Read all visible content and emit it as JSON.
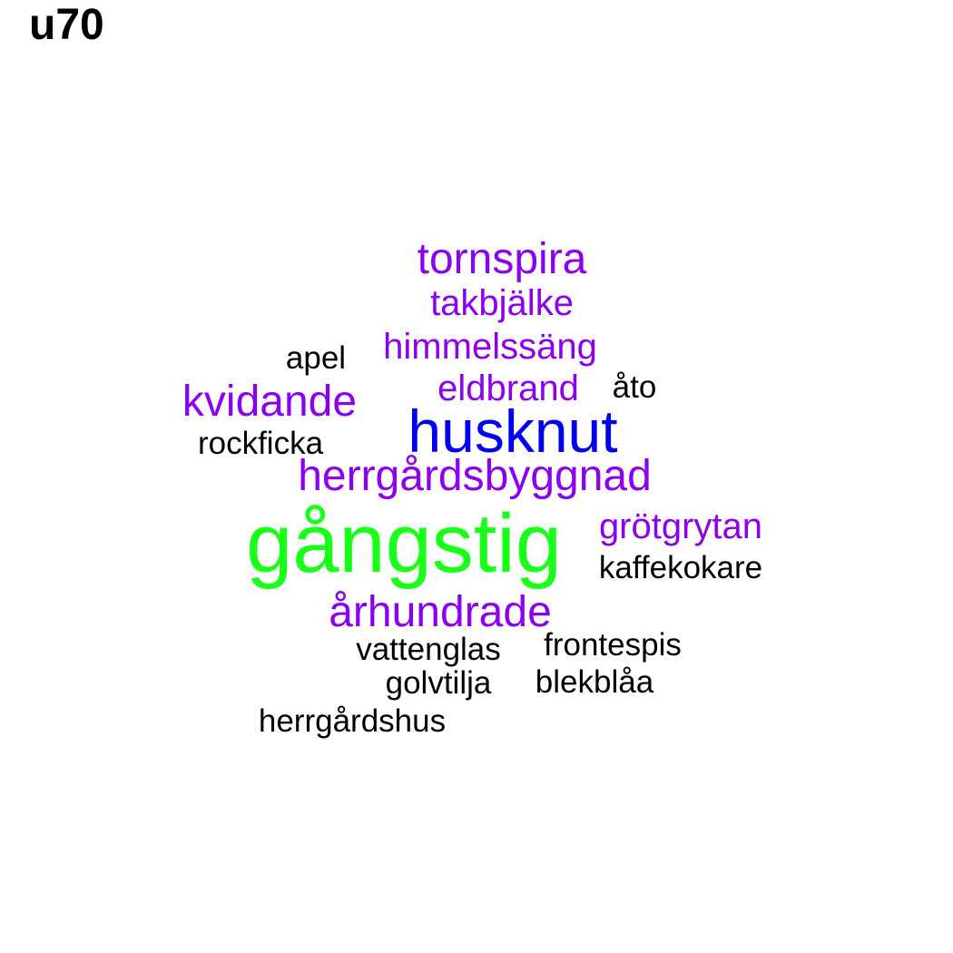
{
  "title": "u70",
  "colors": {
    "top": "#1aff1a",
    "second": "#0000ee",
    "mid": "#8b00ee",
    "low": "#000000"
  },
  "chart_data": {
    "type": "wordcloud",
    "words": [
      {
        "text": "gångstig",
        "weight": 10,
        "color": "top"
      },
      {
        "text": "husknut",
        "weight": 7,
        "color": "second"
      },
      {
        "text": "århundrade",
        "weight": 5,
        "color": "mid"
      },
      {
        "text": "tornspira",
        "weight": 5,
        "color": "mid"
      },
      {
        "text": "herrgårdsbyggnad",
        "weight": 5,
        "color": "mid"
      },
      {
        "text": "kvidande",
        "weight": 5,
        "color": "mid"
      },
      {
        "text": "takbjälke",
        "weight": 4,
        "color": "mid"
      },
      {
        "text": "himmelssäng",
        "weight": 4,
        "color": "mid"
      },
      {
        "text": "eldbrand",
        "weight": 4,
        "color": "mid"
      },
      {
        "text": "grötgrytan",
        "weight": 4,
        "color": "mid"
      },
      {
        "text": "kaffekokare",
        "weight": 3,
        "color": "low"
      },
      {
        "text": "frontespis",
        "weight": 3,
        "color": "low"
      },
      {
        "text": "vattenglas",
        "weight": 3,
        "color": "low"
      },
      {
        "text": "golvtilja",
        "weight": 3,
        "color": "low"
      },
      {
        "text": "blekblåa",
        "weight": 3,
        "color": "low"
      },
      {
        "text": "herrgårdshus",
        "weight": 3,
        "color": "low"
      },
      {
        "text": "rockficka",
        "weight": 3,
        "color": "low"
      },
      {
        "text": "apel",
        "weight": 3,
        "color": "low"
      },
      {
        "text": "åto",
        "weight": 3,
        "color": "low"
      }
    ]
  }
}
